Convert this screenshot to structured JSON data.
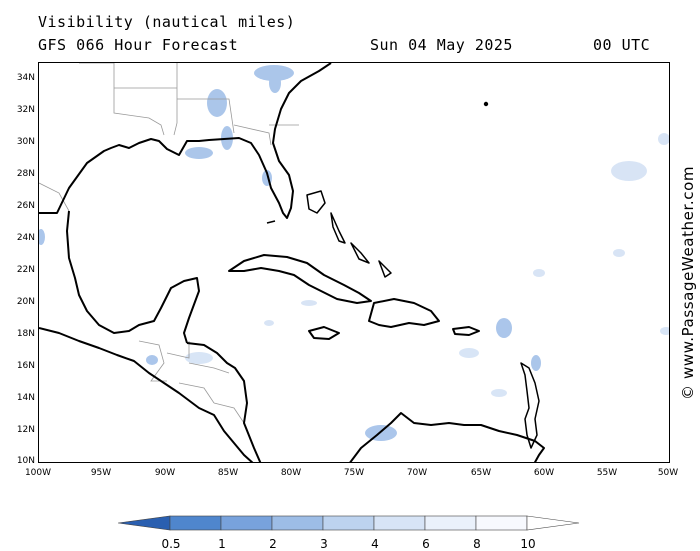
{
  "header": {
    "title": "Visibility (nautical miles)",
    "model_line": "GFS 066 Hour Forecast",
    "date": "Sun 04 May 2025",
    "time": "00 UTC"
  },
  "map": {
    "lat_ticks": [
      "34N",
      "32N",
      "30N",
      "28N",
      "26N",
      "24N",
      "22N",
      "20N",
      "18N",
      "16N",
      "14N",
      "12N",
      "10N"
    ],
    "lon_ticks": [
      "100W",
      "95W",
      "90W",
      "85W",
      "80W",
      "75W",
      "70W",
      "65W",
      "60W",
      "55W",
      "50W"
    ],
    "lat_range": [
      10,
      35
    ],
    "lon_range": [
      -100,
      -50
    ]
  },
  "watermark": "© www.PassageWeather.com",
  "legend": {
    "labels": [
      "0.5",
      "1",
      "2",
      "3",
      "4",
      "6",
      "8",
      "10"
    ],
    "colors": [
      "#2a5fb0",
      "#4f86cd",
      "#78a2dc",
      "#9dbde6",
      "#bdd3ef",
      "#d7e4f6",
      "#eaf1fb",
      "#f7f9fe",
      "#ffffff"
    ]
  },
  "colors": {
    "land": "#ffffff",
    "sea": "#ffffff",
    "coast": "#000000",
    "border": "#999999"
  }
}
